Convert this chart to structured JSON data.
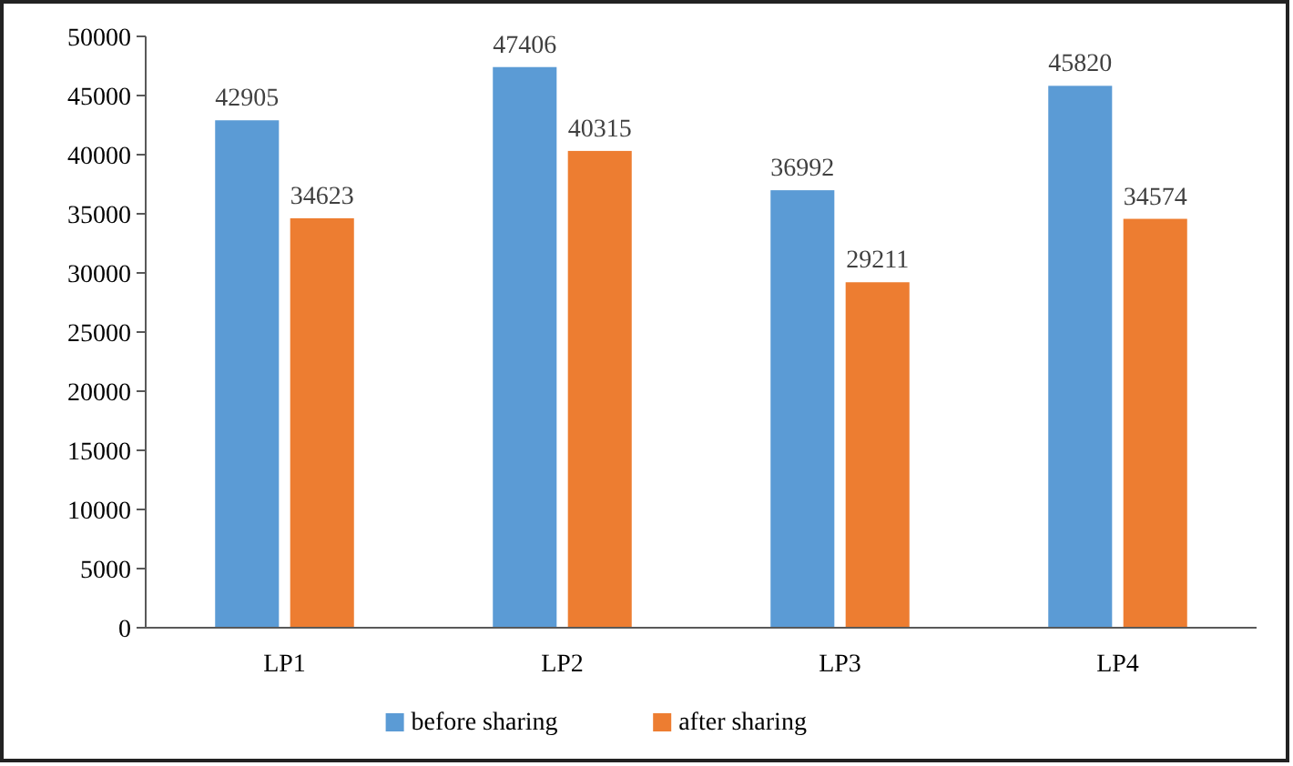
{
  "chart_data": {
    "type": "bar",
    "categories": [
      "LP1",
      "LP2",
      "LP3",
      "LP4"
    ],
    "series": [
      {
        "name": "before sharing",
        "color": "#5b9bd5",
        "values": [
          42905,
          47406,
          36992,
          45820
        ]
      },
      {
        "name": "after sharing",
        "color": "#ed7d31",
        "values": [
          34623,
          40315,
          29211,
          34574
        ]
      }
    ],
    "ylim": [
      0,
      50000
    ],
    "yticks": [
      0,
      5000,
      10000,
      15000,
      20000,
      25000,
      30000,
      35000,
      40000,
      45000,
      50000
    ],
    "data_labels": true,
    "legend": "bottom",
    "grid": false
  }
}
